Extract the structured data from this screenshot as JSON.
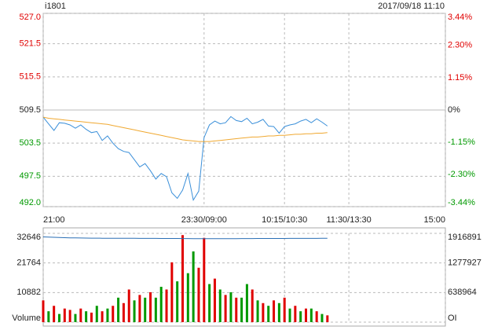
{
  "header": {
    "symbol": "i1801",
    "datetime": "2017/09/18 11:10"
  },
  "chart_data": [
    {
      "type": "line",
      "x": [
        0,
        5,
        10,
        15,
        20,
        25,
        30,
        35,
        40,
        45,
        50,
        55,
        60,
        65,
        70,
        75,
        80,
        85,
        90,
        95,
        100,
        105,
        110,
        115,
        120,
        125,
        130,
        135,
        140,
        145,
        150,
        155,
        160,
        165,
        170,
        175,
        180,
        185,
        190,
        195,
        200,
        205,
        210,
        215,
        220,
        225,
        230,
        235,
        240,
        245,
        250,
        255,
        260,
        265
      ],
      "xlim": [
        0,
        375
      ],
      "xticks": [
        {
          "value": 0,
          "label": "21:00"
        },
        {
          "value": 150,
          "label": "23:30/09:00"
        },
        {
          "value": 225,
          "label": "10:15/10:30"
        },
        {
          "value": 285,
          "label": "11:30/13:30"
        },
        {
          "value": 375,
          "label": "15:00"
        }
      ],
      "ylim": [
        492,
        527
      ],
      "yticks": [
        {
          "value": 527,
          "label": "527.0"
        },
        521.5,
        515.5,
        509.5,
        503.5,
        497.5,
        {
          "value": 492,
          "label": "492.0"
        }
      ],
      "y2lim": [
        -3.44,
        3.44
      ],
      "y2ticks": [
        {
          "value": 3.44,
          "label": "3.44%"
        },
        {
          "value": 2.3,
          "label": "2.30%"
        },
        {
          "value": 1.15,
          "label": "1.15%"
        },
        {
          "value": 0,
          "label": "0%"
        },
        {
          "value": -1.15,
          "label": "-1.15%"
        },
        {
          "value": -2.3,
          "label": "-2.30%"
        },
        {
          "value": -3.44,
          "label": "-3.44%"
        }
      ],
      "up_color": "#e00000",
      "down_color": "#009900",
      "grid": true,
      "series": [
        {
          "color": "#3a8fd9",
          "values": [
            508.2,
            507.0,
            505.8,
            507.2,
            507.1,
            506.8,
            506.2,
            506.8,
            506.0,
            505.4,
            505.6,
            504.0,
            504.8,
            503.5,
            502.5,
            502.0,
            501.8,
            500.5,
            499.2,
            499.8,
            498.5,
            497.0,
            498.0,
            497.4,
            494.5,
            493.5,
            495.0,
            498.0,
            493.2,
            494.8,
            504.5,
            506.8,
            507.5,
            507.0,
            507.2,
            508.3,
            507.6,
            507.4,
            508.0,
            507.0,
            507.3,
            507.8,
            506.6,
            506.5,
            505.3,
            506.5,
            506.8,
            507.0,
            507.5,
            507.8,
            507.2,
            507.9,
            507.3,
            506.6
          ]
        },
        {
          "color": "#f0a830",
          "values": [
            508.2,
            508.0,
            507.9,
            507.8,
            507.7,
            507.6,
            507.5,
            507.4,
            507.3,
            507.2,
            507.1,
            507.0,
            506.9,
            506.7,
            506.5,
            506.3,
            506.1,
            505.9,
            505.7,
            505.5,
            505.3,
            505.1,
            504.9,
            504.7,
            504.5,
            504.3,
            504.1,
            504.0,
            503.9,
            503.8,
            503.8,
            503.8,
            503.9,
            504.0,
            504.1,
            504.2,
            504.3,
            504.4,
            504.5,
            504.6,
            504.6,
            504.7,
            504.8,
            504.8,
            504.9,
            504.9,
            505.0,
            505.1,
            505.1,
            505.2,
            505.2,
            505.3,
            505.3,
            505.4
          ]
        }
      ]
    },
    {
      "type": "bar",
      "x": [
        0,
        5,
        10,
        15,
        20,
        25,
        30,
        35,
        40,
        45,
        50,
        55,
        60,
        65,
        70,
        75,
        80,
        85,
        90,
        95,
        100,
        105,
        110,
        115,
        120,
        125,
        130,
        135,
        140,
        145,
        150,
        155,
        160,
        165,
        170,
        175,
        180,
        185,
        190,
        195,
        200,
        205,
        210,
        215,
        220,
        225,
        230,
        235,
        240,
        245,
        250,
        255,
        260,
        265
      ],
      "xlim": [
        0,
        375
      ],
      "xticks": [
        0,
        150,
        225,
        285,
        375
      ],
      "ylim": [
        0,
        32646
      ],
      "yticks": [
        {
          "value": 0,
          "label": "Volume"
        },
        10882,
        21764,
        32646
      ],
      "y2lim": [
        0,
        1916891
      ],
      "y2ticks": [
        {
          "value": 0,
          "label": "OI"
        },
        638964,
        1277927,
        1916891
      ],
      "grid": true,
      "series": [
        {
          "values": [
            8000,
            4000,
            6000,
            3000,
            5000,
            4500,
            3000,
            5000,
            4000,
            3500,
            6000,
            4000,
            5000,
            6000,
            9000,
            7000,
            12000,
            8000,
            10000,
            9000,
            11000,
            9000,
            13000,
            12000,
            22000,
            15000,
            32000,
            18000,
            26000,
            20000,
            31000,
            14000,
            16000,
            12000,
            10000,
            11000,
            9000,
            9000,
            14000,
            12000,
            8000,
            7000,
            6000,
            8000,
            7000,
            9000,
            5000,
            6000,
            4000,
            5000,
            5000,
            4000,
            3000,
            2500
          ],
          "colors": [
            "#e00000",
            "#009900",
            "#e00000",
            "#009900",
            "#e00000",
            "#e00000",
            "#009900",
            "#e00000",
            "#009900",
            "#e00000",
            "#009900",
            "#e00000",
            "#009900",
            "#e00000",
            "#009900",
            "#e00000",
            "#e00000",
            "#009900",
            "#e00000",
            "#009900",
            "#e00000",
            "#009900",
            "#009900",
            "#e00000",
            "#e00000",
            "#009900",
            "#e00000",
            "#009900",
            "#009900",
            "#e00000",
            "#e00000",
            "#009900",
            "#e00000",
            "#009900",
            "#e00000",
            "#009900",
            "#e00000",
            "#009900",
            "#009900",
            "#e00000",
            "#009900",
            "#e00000",
            "#009900",
            "#e00000",
            "#009900",
            "#e00000",
            "#009900",
            "#e00000",
            "#009900",
            "#e00000",
            "#009900",
            "#e00000",
            "#009900",
            "#e00000"
          ]
        },
        {
          "axis": "y2",
          "color": "#2a6fb5",
          "values": [
            1840000,
            1836000,
            1832000,
            1828000,
            1824000,
            1820000,
            1818000,
            1816000,
            1815000,
            1814000,
            1813000,
            1812000,
            1812000,
            1811000,
            1811000,
            1810000,
            1810000,
            1810000,
            1809000,
            1809000,
            1808000,
            1808000,
            1807000,
            1807000,
            1806000,
            1806000,
            1805000,
            1805000,
            1804000,
            1804000,
            1803000,
            1802000,
            1802000,
            1803000,
            1803000,
            1804000,
            1804000,
            1805000,
            1805000,
            1805000,
            1806000,
            1806000,
            1806000,
            1807000,
            1807000,
            1807000,
            1808000,
            1808000,
            1808000,
            1809000,
            1809000,
            1809000,
            1810000,
            1810000
          ]
        }
      ]
    }
  ]
}
